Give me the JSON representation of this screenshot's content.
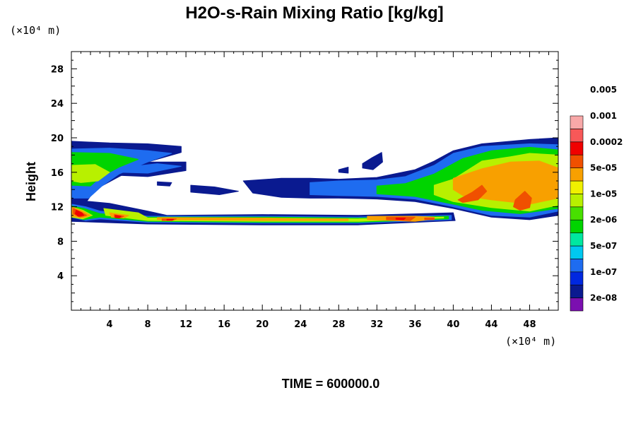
{
  "chart_data": {
    "type": "heatmap",
    "title": "H2O-s-Rain Mixing Ratio [kg/kg]",
    "ylabel": "Height",
    "x_unit": "(×10⁴ m)",
    "y_unit": "(×10⁴ m)",
    "footer": "TIME = 600000.0",
    "xlim": [
      0,
      51
    ],
    "ylim": [
      0,
      30
    ],
    "x_ticks": [
      4,
      8,
      12,
      16,
      20,
      24,
      28,
      32,
      36,
      40,
      44,
      48
    ],
    "y_ticks": [
      4,
      8,
      12,
      16,
      20,
      24,
      28
    ],
    "colorbar": {
      "levels": [
        "2e-08",
        "1e-07",
        "5e-07",
        "2e-06",
        "1e-05",
        "5e-05",
        "0.0002",
        "0.001",
        "0.005"
      ],
      "colors": [
        "#7b0fb0",
        "#0a1a90",
        "#0028e0",
        "#1e6cf0",
        "#00c8f0",
        "#00e8a0",
        "#00d400",
        "#48e000",
        "#b8f000",
        "#f0f000",
        "#f8a000",
        "#f05000",
        "#f00000",
        "#f85858",
        "#f8a8a8"
      ]
    },
    "layers": [
      {
        "level": 1,
        "paths": [
          [
            [
              0,
              19.6
            ],
            [
              4,
              19.4
            ],
            [
              8,
              19.3
            ],
            [
              11.5,
              19.0
            ],
            [
              11.5,
              18.3
            ],
            [
              8,
              17.2
            ],
            [
              5,
              15.5
            ],
            [
              2.5,
              14.0
            ],
            [
              1.2,
              12.0
            ],
            [
              0,
              10.5
            ]
          ],
          [
            [
              0,
              12.8
            ],
            [
              4,
              12.4
            ],
            [
              8,
              11.5
            ],
            [
              10,
              11.0
            ],
            [
              20,
              11.1
            ],
            [
              30,
              11.0
            ],
            [
              40,
              11.3
            ],
            [
              40.2,
              10.4
            ],
            [
              30,
              9.9
            ],
            [
              20,
              9.9
            ],
            [
              8,
              10.0
            ],
            [
              3,
              10.2
            ],
            [
              0,
              10.3
            ]
          ],
          [
            [
              3.8,
              16.3
            ],
            [
              7.5,
              17.2
            ],
            [
              12,
              17.2
            ],
            [
              12,
              16.2
            ],
            [
              8,
              15.5
            ],
            [
              3.8,
              15.7
            ]
          ],
          [
            [
              12.5,
              14.5
            ],
            [
              15,
              14.3
            ],
            [
              17.5,
              13.8
            ],
            [
              15.5,
              13.4
            ],
            [
              12.5,
              13.7
            ]
          ],
          [
            [
              9,
              14.9
            ],
            [
              10.5,
              14.8
            ],
            [
              10.3,
              14.4
            ],
            [
              9,
              14.5
            ]
          ],
          [
            [
              30.5,
              17.0
            ],
            [
              31.5,
              17.7
            ],
            [
              32.5,
              18.3
            ],
            [
              32.6,
              17.2
            ],
            [
              31.6,
              16.3
            ],
            [
              30.5,
              16.5
            ]
          ],
          [
            [
              28,
              16.3
            ],
            [
              29,
              16.6
            ],
            [
              29,
              15.9
            ],
            [
              28,
              16.0
            ]
          ],
          [
            [
              18,
              15.0
            ],
            [
              22,
              15.3
            ],
            [
              25,
              15.3
            ],
            [
              28,
              15.2
            ],
            [
              32,
              15.4
            ],
            [
              36,
              16.3
            ],
            [
              38,
              17.3
            ],
            [
              40,
              18.5
            ],
            [
              43,
              19.3
            ],
            [
              46,
              19.6
            ],
            [
              48,
              19.8
            ],
            [
              51,
              20.0
            ],
            [
              51,
              11.0
            ],
            [
              48,
              10.5
            ],
            [
              44,
              10.8
            ],
            [
              40,
              11.8
            ],
            [
              36,
              12.6
            ],
            [
              32,
              12.9
            ],
            [
              28,
              13.0
            ],
            [
              25,
              13.0
            ],
            [
              22,
              13.1
            ],
            [
              19,
              13.6
            ]
          ]
        ]
      },
      {
        "level": 3,
        "paths": [
          [
            [
              0,
              18.7
            ],
            [
              4,
              18.8
            ],
            [
              8,
              18.5
            ],
            [
              10.5,
              18.2
            ],
            [
              8,
              17.2
            ],
            [
              5,
              15.8
            ],
            [
              3.2,
              14.4
            ],
            [
              1.8,
              13.0
            ],
            [
              0,
              13.0
            ]
          ],
          [
            [
              0,
              12.3
            ],
            [
              1.5,
              12.0
            ],
            [
              3,
              11.5
            ],
            [
              8,
              10.9
            ],
            [
              20,
              10.9
            ],
            [
              30,
              10.8
            ],
            [
              39.8,
              11.0
            ],
            [
              39.8,
              10.5
            ],
            [
              30,
              10.1
            ],
            [
              20,
              10.1
            ],
            [
              8,
              10.2
            ],
            [
              3,
              10.6
            ],
            [
              1.5,
              10.4
            ],
            [
              0,
              10.8
            ]
          ],
          [
            [
              5,
              16.5
            ],
            [
              9,
              17.0
            ],
            [
              11.5,
              16.7
            ],
            [
              8,
              15.9
            ],
            [
              5,
              16.0
            ]
          ],
          [
            [
              25,
              14.8
            ],
            [
              28,
              15.0
            ],
            [
              32,
              15.1
            ],
            [
              35,
              15.5
            ],
            [
              38,
              16.8
            ],
            [
              40,
              18.2
            ],
            [
              43,
              19.0
            ],
            [
              48,
              19.3
            ],
            [
              51,
              19.2
            ],
            [
              51,
              11.5
            ],
            [
              48,
              10.8
            ],
            [
              44,
              11.0
            ],
            [
              40,
              12.0
            ],
            [
              36,
              12.9
            ],
            [
              32,
              13.2
            ],
            [
              28,
              13.3
            ],
            [
              25,
              13.4
            ]
          ]
        ]
      },
      {
        "level": 6,
        "paths": [
          [
            [
              0,
              18.3
            ],
            [
              4,
              18.2
            ],
            [
              7,
              17.5
            ],
            [
              5,
              16.6
            ],
            [
              3,
              15.4
            ],
            [
              2,
              14.4
            ],
            [
              0,
              14.5
            ]
          ],
          [
            [
              0,
              12.1
            ],
            [
              1.3,
              11.8
            ],
            [
              3,
              11.2
            ],
            [
              8,
              10.8
            ],
            [
              20,
              10.8
            ],
            [
              30,
              10.7
            ],
            [
              39.5,
              10.9
            ],
            [
              39.5,
              10.6
            ],
            [
              30,
              10.2
            ],
            [
              20,
              10.2
            ],
            [
              8,
              10.3
            ],
            [
              3,
              10.8
            ],
            [
              1.3,
              10.5
            ],
            [
              0,
              10.9
            ]
          ],
          [
            [
              32,
              14.4
            ],
            [
              35,
              14.7
            ],
            [
              38,
              15.8
            ],
            [
              41,
              17.6
            ],
            [
              44,
              18.5
            ],
            [
              48,
              18.9
            ],
            [
              51,
              18.6
            ],
            [
              51,
              11.8
            ],
            [
              47,
              11.2
            ],
            [
              43,
              11.6
            ],
            [
              40,
              12.3
            ],
            [
              36,
              13.2
            ],
            [
              32,
              13.5
            ]
          ]
        ]
      },
      {
        "level": 8,
        "paths": [
          [
            [
              0,
              16.8
            ],
            [
              2.5,
              16.9
            ],
            [
              4,
              16.0
            ],
            [
              2.8,
              15.0
            ],
            [
              1,
              14.8
            ],
            [
              0,
              15.0
            ]
          ],
          [
            [
              0,
              12.0
            ],
            [
              1.2,
              11.6
            ],
            [
              2.2,
              11.0
            ],
            [
              1.2,
              10.6
            ],
            [
              0,
              10.8
            ]
          ],
          [
            [
              3.4,
              11.8
            ],
            [
              7,
              11.3
            ],
            [
              8,
              10.7
            ],
            [
              20,
              10.7
            ],
            [
              30,
              10.6
            ],
            [
              39,
              10.8
            ],
            [
              39,
              10.7
            ],
            [
              30,
              10.3
            ],
            [
              20,
              10.3
            ],
            [
              8,
              10.4
            ],
            [
              3.6,
              11.0
            ]
          ],
          [
            [
              38,
              14.5
            ],
            [
              40,
              15.2
            ],
            [
              43,
              17.3
            ],
            [
              46,
              17.8
            ],
            [
              48,
              18.2
            ],
            [
              51,
              18.0
            ],
            [
              51,
              12.2
            ],
            [
              48,
              11.5
            ],
            [
              44,
              11.9
            ],
            [
              40,
              12.6
            ],
            [
              38,
              13.4
            ]
          ]
        ]
      },
      {
        "level": 10,
        "paths": [
          [
            [
              0,
              12.0
            ],
            [
              1.2,
              11.5
            ],
            [
              2,
              11.0
            ],
            [
              1.2,
              10.7
            ],
            [
              0,
              10.9
            ]
          ],
          [
            [
              4,
              11.3
            ],
            [
              6,
              11.0
            ],
            [
              5.5,
              10.7
            ],
            [
              4.2,
              10.8
            ]
          ],
          [
            [
              9,
              10.75
            ],
            [
              20,
              10.7
            ],
            [
              24,
              10.6
            ],
            [
              29,
              10.6
            ],
            [
              29,
              10.4
            ],
            [
              24,
              10.4
            ],
            [
              20,
              10.4
            ],
            [
              9,
              10.5
            ]
          ],
          [
            [
              31,
              10.9
            ],
            [
              36,
              10.9
            ],
            [
              38,
              10.8
            ],
            [
              38,
              10.6
            ],
            [
              36,
              10.3
            ],
            [
              31,
              10.5
            ]
          ],
          [
            [
              40,
              15.3
            ],
            [
              43,
              16.4
            ],
            [
              46,
              17.2
            ],
            [
              49,
              17.3
            ],
            [
              51,
              16.5
            ],
            [
              51,
              13.0
            ],
            [
              48,
              12.3
            ],
            [
              44,
              12.8
            ],
            [
              41,
              13.3
            ],
            [
              40,
              14.0
            ]
          ]
        ]
      },
      {
        "level": 11,
        "paths": [
          [
            [
              0.2,
              11.8
            ],
            [
              1,
              11.4
            ],
            [
              1.6,
              11.0
            ],
            [
              0.9,
              10.8
            ],
            [
              0.2,
              11.2
            ]
          ],
          [
            [
              4.5,
              11.1
            ],
            [
              5.5,
              10.9
            ],
            [
              5.1,
              10.7
            ],
            [
              4.5,
              10.8
            ]
          ],
          [
            [
              9.5,
              10.6
            ],
            [
              11,
              10.6
            ],
            [
              10.6,
              10.4
            ],
            [
              9.5,
              10.4
            ]
          ],
          [
            [
              33,
              10.8
            ],
            [
              36,
              10.8
            ],
            [
              35.5,
              10.4
            ],
            [
              33,
              10.5
            ]
          ],
          [
            [
              37,
              10.7
            ],
            [
              38,
              10.7
            ],
            [
              38,
              10.5
            ],
            [
              37,
              10.5
            ]
          ],
          [
            [
              40.5,
              12.8
            ],
            [
              42,
              13.7
            ],
            [
              43,
              14.5
            ],
            [
              43.5,
              13.8
            ],
            [
              42.6,
              12.8
            ],
            [
              41,
              12.5
            ]
          ],
          [
            [
              46.5,
              12.8
            ],
            [
              47.5,
              13.8
            ],
            [
              48.2,
              13.0
            ],
            [
              48,
              11.9
            ],
            [
              47,
              11.6
            ],
            [
              46.3,
              12.0
            ]
          ]
        ]
      },
      {
        "level": 12,
        "paths": [
          [
            [
              0.5,
              11.6
            ],
            [
              1.1,
              11.3
            ],
            [
              1.3,
              11.0
            ],
            [
              0.7,
              10.9
            ],
            [
              0.4,
              11.2
            ]
          ],
          [
            [
              4.6,
              11.0
            ],
            [
              5.2,
              10.9
            ],
            [
              5.0,
              10.7
            ],
            [
              4.6,
              10.75
            ]
          ],
          [
            [
              10,
              10.55
            ],
            [
              10.7,
              10.55
            ],
            [
              10.5,
              10.45
            ],
            [
              10,
              10.45
            ]
          ],
          [
            [
              34,
              10.7
            ],
            [
              35,
              10.7
            ],
            [
              34.8,
              10.5
            ],
            [
              34,
              10.55
            ]
          ]
        ]
      }
    ]
  }
}
